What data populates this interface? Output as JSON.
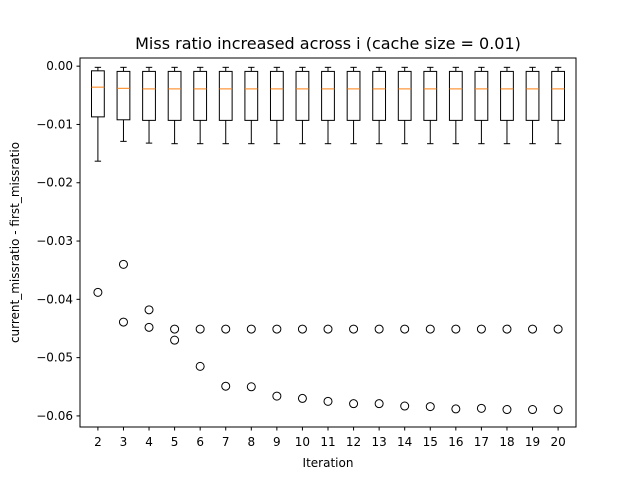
{
  "chart_data": {
    "type": "box",
    "title": "Miss ratio increased across i (cache size = 0.01)",
    "xlabel": "Iteration",
    "ylabel": "current_missratio - first_missratio",
    "ylim": [
      -0.0619,
      0.0014
    ],
    "yticks": [
      0.0,
      -0.01,
      -0.02,
      -0.03,
      -0.04,
      -0.05,
      -0.06
    ],
    "ytick_labels": [
      "0.00",
      "−0.01",
      "−0.02",
      "−0.03",
      "−0.04",
      "−0.05",
      "−0.06"
    ],
    "categories": [
      "2",
      "3",
      "4",
      "5",
      "6",
      "7",
      "8",
      "9",
      "10",
      "11",
      "12",
      "13",
      "14",
      "15",
      "16",
      "17",
      "18",
      "19",
      "20"
    ],
    "boxes": [
      {
        "whislo": -0.0163,
        "q1": -0.0087,
        "med": -0.0036,
        "q3": -0.0008,
        "whishi": -0.0002,
        "fliers": [
          -0.0388
        ]
      },
      {
        "whislo": -0.0129,
        "q1": -0.0092,
        "med": -0.0038,
        "q3": -0.0009,
        "whishi": -0.0002,
        "fliers": [
          -0.034,
          -0.0439
        ]
      },
      {
        "whislo": -0.0132,
        "q1": -0.0093,
        "med": -0.0039,
        "q3": -0.0009,
        "whishi": -0.0002,
        "fliers": [
          -0.0418,
          -0.0448
        ]
      },
      {
        "whislo": -0.0133,
        "q1": -0.0093,
        "med": -0.0039,
        "q3": -0.0009,
        "whishi": -0.0002,
        "fliers": [
          -0.0451,
          -0.047
        ]
      },
      {
        "whislo": -0.0133,
        "q1": -0.0093,
        "med": -0.0039,
        "q3": -0.0009,
        "whishi": -0.0002,
        "fliers": [
          -0.0451,
          -0.0515
        ]
      },
      {
        "whislo": -0.0133,
        "q1": -0.0093,
        "med": -0.0039,
        "q3": -0.0009,
        "whishi": -0.0002,
        "fliers": [
          -0.0451,
          -0.0549
        ]
      },
      {
        "whislo": -0.0133,
        "q1": -0.0093,
        "med": -0.0039,
        "q3": -0.0009,
        "whishi": -0.0002,
        "fliers": [
          -0.0451,
          -0.055
        ]
      },
      {
        "whislo": -0.0133,
        "q1": -0.0093,
        "med": -0.0039,
        "q3": -0.0009,
        "whishi": -0.0002,
        "fliers": [
          -0.0451,
          -0.0566
        ]
      },
      {
        "whislo": -0.0133,
        "q1": -0.0093,
        "med": -0.0039,
        "q3": -0.0009,
        "whishi": -0.0002,
        "fliers": [
          -0.0451,
          -0.057
        ]
      },
      {
        "whislo": -0.0133,
        "q1": -0.0093,
        "med": -0.0039,
        "q3": -0.0009,
        "whishi": -0.0002,
        "fliers": [
          -0.0451,
          -0.0575
        ]
      },
      {
        "whislo": -0.0133,
        "q1": -0.0093,
        "med": -0.0039,
        "q3": -0.0009,
        "whishi": -0.0002,
        "fliers": [
          -0.0451,
          -0.0579
        ]
      },
      {
        "whislo": -0.0133,
        "q1": -0.0093,
        "med": -0.0039,
        "q3": -0.0009,
        "whishi": -0.0002,
        "fliers": [
          -0.0451,
          -0.0579
        ]
      },
      {
        "whislo": -0.0133,
        "q1": -0.0093,
        "med": -0.0039,
        "q3": -0.0009,
        "whishi": -0.0002,
        "fliers": [
          -0.0451,
          -0.0583
        ]
      },
      {
        "whislo": -0.0133,
        "q1": -0.0093,
        "med": -0.0039,
        "q3": -0.0009,
        "whishi": -0.0002,
        "fliers": [
          -0.0451,
          -0.0584
        ]
      },
      {
        "whislo": -0.0133,
        "q1": -0.0093,
        "med": -0.0039,
        "q3": -0.0009,
        "whishi": -0.0002,
        "fliers": [
          -0.0451,
          -0.0588
        ]
      },
      {
        "whislo": -0.0133,
        "q1": -0.0093,
        "med": -0.0039,
        "q3": -0.0009,
        "whishi": -0.0002,
        "fliers": [
          -0.0451,
          -0.0587
        ]
      },
      {
        "whislo": -0.0133,
        "q1": -0.0093,
        "med": -0.0039,
        "q3": -0.0009,
        "whishi": -0.0002,
        "fliers": [
          -0.0451,
          -0.0589
        ]
      },
      {
        "whislo": -0.0133,
        "q1": -0.0093,
        "med": -0.0039,
        "q3": -0.0009,
        "whishi": -0.0002,
        "fliers": [
          -0.0451,
          -0.0589
        ]
      },
      {
        "whislo": -0.0133,
        "q1": -0.0093,
        "med": -0.0039,
        "q3": -0.0009,
        "whishi": -0.0002,
        "fliers": [
          -0.0451,
          -0.0589
        ]
      }
    ],
    "colors": {
      "box": "#000000",
      "median": "#ff7f0e",
      "flier": "#000000",
      "axes": "#000000"
    },
    "grid": false,
    "legend": "none"
  }
}
